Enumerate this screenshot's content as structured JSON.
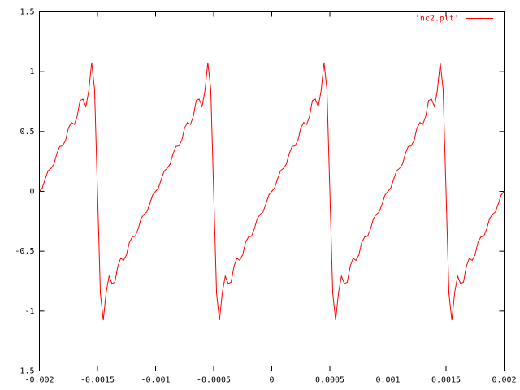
{
  "chart_data": {
    "type": "line",
    "x": [
      -0.002,
      -0.001975,
      -0.00195,
      -0.001925,
      -0.0019,
      -0.001875,
      -0.00185,
      -0.001825,
      -0.0018,
      -0.001775,
      -0.00175,
      -0.001725,
      -0.0017,
      -0.001675,
      -0.00165,
      -0.001625,
      -0.0016,
      -0.001575,
      -0.00155,
      -0.001525,
      -0.0015,
      -0.001475,
      -0.00145,
      -0.001425,
      -0.0014,
      -0.001375,
      -0.00135,
      -0.001325,
      -0.0013,
      -0.001275,
      -0.00125,
      -0.001225,
      -0.0012,
      -0.001175,
      -0.00115,
      -0.001125,
      -0.0011,
      -0.001075,
      -0.00105,
      -0.001025,
      -0.001,
      -0.000975,
      -0.00095,
      -0.000925,
      -0.0009,
      -0.000875,
      -0.00085,
      -0.000825,
      -0.0008,
      -0.000775,
      -0.00075,
      -0.000725,
      -0.0007,
      -0.000675,
      -0.00065,
      -0.000625,
      -0.0006,
      -0.000575,
      -0.00055,
      -0.000525,
      -0.0005,
      -0.000475,
      -0.00045,
      -0.000425,
      -0.0004,
      -0.000375,
      -0.00035,
      -0.000325,
      -0.0003,
      -0.000275,
      -0.00025,
      -0.000225,
      -0.0002,
      -0.000175,
      -0.00015,
      -0.000125,
      -0.0001,
      -7.5e-05,
      -5e-05,
      -2.5e-05,
      0,
      2.5e-05,
      5e-05,
      7.5e-05,
      0.0001,
      0.000125,
      0.00015,
      0.000175,
      0.0002,
      0.000225,
      0.00025,
      0.000275,
      0.0003,
      0.000325,
      0.00035,
      0.000375,
      0.0004,
      0.000425,
      0.00045,
      0.000475,
      0.0005,
      0.000525,
      0.00055,
      0.000575,
      0.0006,
      0.000625,
      0.00065,
      0.000675,
      0.0007,
      0.000725,
      0.00075,
      0.000775,
      0.0008,
      0.000825,
      0.00085,
      0.000875,
      0.0009,
      0.000925,
      0.00095,
      0.000975,
      0.001,
      0.001025,
      0.00105,
      0.001075,
      0.0011,
      0.001125,
      0.00115,
      0.001175,
      0.0012,
      0.001225,
      0.00125,
      0.001275,
      0.0013,
      0.001325,
      0.00135,
      0.001375,
      0.0014,
      0.001425,
      0.00145,
      0.001475,
      0.0015,
      0.001525,
      0.00155,
      0.001575,
      0.0016,
      0.001625,
      0.00165,
      0.001675,
      0.0017,
      0.001725,
      0.00175,
      0.001775,
      0.0018,
      0.001825,
      0.00185,
      0.001875,
      0.0019,
      0.001925,
      0.00195,
      0.001975,
      0.002
    ],
    "series": [
      {
        "name": "'nc2.plt'",
        "color": "#ff0000",
        "values": [
          0,
          0.03,
          0.104,
          0.172,
          0.192,
          0.227,
          0.314,
          0.375,
          0.38,
          0.425,
          0.529,
          0.576,
          0.559,
          0.626,
          0.759,
          0.771,
          0.708,
          0.841,
          1.076,
          0.853,
          0,
          -0.853,
          -1.076,
          -0.841,
          -0.708,
          -0.771,
          -0.759,
          -0.626,
          -0.559,
          -0.576,
          -0.529,
          -0.425,
          -0.38,
          -0.375,
          -0.314,
          -0.227,
          -0.192,
          -0.172,
          -0.104,
          -0.03,
          0,
          0.03,
          0.104,
          0.172,
          0.192,
          0.227,
          0.314,
          0.375,
          0.38,
          0.425,
          0.529,
          0.576,
          0.559,
          0.626,
          0.759,
          0.771,
          0.708,
          0.841,
          1.076,
          0.853,
          0,
          -0.853,
          -1.076,
          -0.841,
          -0.708,
          -0.771,
          -0.759,
          -0.626,
          -0.559,
          -0.576,
          -0.529,
          -0.425,
          -0.38,
          -0.375,
          -0.314,
          -0.227,
          -0.192,
          -0.172,
          -0.104,
          -0.03,
          0,
          0.03,
          0.104,
          0.172,
          0.192,
          0.227,
          0.314,
          0.375,
          0.38,
          0.425,
          0.529,
          0.576,
          0.559,
          0.626,
          0.759,
          0.771,
          0.708,
          0.841,
          1.076,
          0.853,
          0,
          -0.853,
          -1.076,
          -0.841,
          -0.708,
          -0.771,
          -0.759,
          -0.626,
          -0.559,
          -0.576,
          -0.529,
          -0.425,
          -0.38,
          -0.375,
          -0.314,
          -0.227,
          -0.192,
          -0.172,
          -0.104,
          -0.03,
          0,
          0.03,
          0.104,
          0.172,
          0.192,
          0.227,
          0.314,
          0.375,
          0.38,
          0.425,
          0.529,
          0.576,
          0.559,
          0.626,
          0.759,
          0.771,
          0.708,
          0.841,
          1.076,
          0.853,
          0,
          -0.853,
          -1.076,
          -0.841,
          -0.708,
          -0.771,
          -0.759,
          -0.626,
          -0.559,
          -0.576,
          -0.529,
          -0.425,
          -0.38,
          -0.375,
          -0.314,
          -0.227,
          -0.192,
          -0.172,
          -0.104,
          -0.03,
          0
        ]
      }
    ],
    "xlim": [
      -0.002,
      0.002
    ],
    "xticks": [
      -0.002,
      -0.0015,
      -0.001,
      -0.0005,
      0,
      0.0005,
      0.001,
      0.0015,
      0.002
    ],
    "ylim": [
      -1.5,
      1.5
    ],
    "yticks": [
      -1.5,
      -1,
      -0.5,
      0,
      0.5,
      1,
      1.5
    ],
    "grid": false,
    "legend": "top-right"
  }
}
